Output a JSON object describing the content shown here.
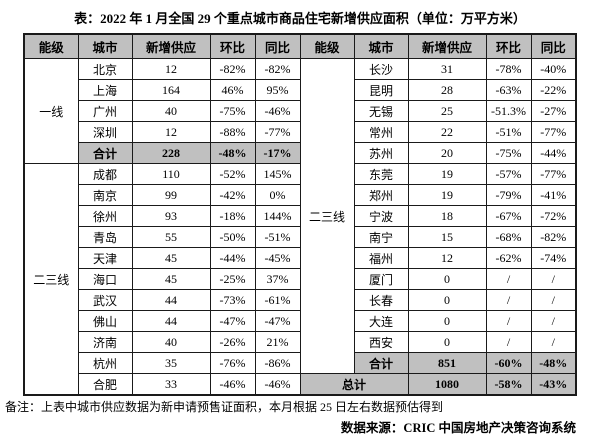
{
  "title": "表：2022 年 1 月全国 29 个重点城市商品住宅新增供应面积（单位：万平方米）",
  "table": {
    "column_headers": [
      "能级",
      "城市",
      "新增供应",
      "环比",
      "同比",
      "能级",
      "城市",
      "新增供应",
      "环比",
      "同比"
    ],
    "total_label": "合计",
    "left": {
      "tier1_label": "一线",
      "tier1_rows": [
        [
          "北京",
          "12",
          "-82%",
          "-82%"
        ],
        [
          "上海",
          "164",
          "46%",
          "95%"
        ],
        [
          "广州",
          "40",
          "-75%",
          "-46%"
        ],
        [
          "深圳",
          "12",
          "-88%",
          "-77%"
        ],
        [
          "合计",
          "228",
          "-48%",
          "-17%"
        ]
      ],
      "tier23_label": "二三线",
      "tier23_rows": [
        [
          "成都",
          "110",
          "-52%",
          "145%"
        ],
        [
          "南京",
          "99",
          "-42%",
          "0%"
        ],
        [
          "徐州",
          "93",
          "-18%",
          "144%"
        ],
        [
          "青岛",
          "55",
          "-50%",
          "-51%"
        ],
        [
          "天津",
          "45",
          "-44%",
          "-45%"
        ],
        [
          "海口",
          "45",
          "-25%",
          "37%"
        ],
        [
          "武汉",
          "44",
          "-73%",
          "-61%"
        ],
        [
          "佛山",
          "44",
          "-47%",
          "-47%"
        ],
        [
          "济南",
          "40",
          "-26%",
          "21%"
        ],
        [
          "杭州",
          "35",
          "-76%",
          "-86%"
        ],
        [
          "合肥",
          "33",
          "-46%",
          "-46%"
        ]
      ]
    },
    "right": {
      "tier_label": "二三线",
      "rows": [
        [
          "长沙",
          "31",
          "-78%",
          "-40%"
        ],
        [
          "昆明",
          "28",
          "-63%",
          "-22%"
        ],
        [
          "无锡",
          "25",
          "-51.3%",
          "-27%"
        ],
        [
          "常州",
          "22",
          "-51%",
          "-77%"
        ],
        [
          "苏州",
          "20",
          "-75%",
          "-44%"
        ],
        [
          "东莞",
          "19",
          "-57%",
          "-77%"
        ],
        [
          "郑州",
          "19",
          "-79%",
          "-41%"
        ],
        [
          "宁波",
          "18",
          "-67%",
          "-72%"
        ],
        [
          "南宁",
          "15",
          "-68%",
          "-82%"
        ],
        [
          "福州",
          "12",
          "-62%",
          "-74%"
        ],
        [
          "厦门",
          "0",
          "/",
          "/"
        ],
        [
          "长春",
          "0",
          "/",
          "/"
        ],
        [
          "大连",
          "0",
          "/",
          "/"
        ],
        [
          "西安",
          "0",
          "/",
          "/"
        ],
        [
          "合计",
          "851",
          "-60%",
          "-48%"
        ]
      ],
      "grand_total": [
        "总计",
        "1080",
        "-58%",
        "-43%"
      ]
    }
  },
  "notes": {
    "remark": "备注：上表中城市供应数据为新申请预售证面积，本月根据 25 日左右数据预估得到",
    "source": "数据来源：CRIC 中国房地产决策咨询系统"
  },
  "colors": {
    "header_bg": "#c0c0c0",
    "total_row_bg": "#c0c0c0",
    "border": "#1a1a1a",
    "text": "#000000",
    "page_bg": "#ffffff"
  },
  "chart_data": {
    "type": "table",
    "title": "表：2022 年 1 月全国 29 个重点城市商品住宅新增供应面积（单位：万平方米）",
    "columns": [
      "能级",
      "城市",
      "新增供应",
      "环比",
      "同比"
    ],
    "rows": [
      [
        "一线",
        "北京",
        "12",
        "-82%",
        "-82%"
      ],
      [
        "一线",
        "上海",
        "164",
        "46%",
        "95%"
      ],
      [
        "一线",
        "广州",
        "40",
        "-75%",
        "-46%"
      ],
      [
        "一线",
        "深圳",
        "12",
        "-88%",
        "-77%"
      ],
      [
        "一线",
        "合计",
        "228",
        "-48%",
        "-17%"
      ],
      [
        "二三线",
        "成都",
        "110",
        "-52%",
        "145%"
      ],
      [
        "二三线",
        "南京",
        "99",
        "-42%",
        "0%"
      ],
      [
        "二三线",
        "徐州",
        "93",
        "-18%",
        "144%"
      ],
      [
        "二三线",
        "青岛",
        "55",
        "-50%",
        "-51%"
      ],
      [
        "二三线",
        "天津",
        "45",
        "-44%",
        "-45%"
      ],
      [
        "二三线",
        "海口",
        "45",
        "-25%",
        "37%"
      ],
      [
        "二三线",
        "武汉",
        "44",
        "-73%",
        "-61%"
      ],
      [
        "二三线",
        "佛山",
        "44",
        "-47%",
        "-47%"
      ],
      [
        "二三线",
        "济南",
        "40",
        "-26%",
        "21%"
      ],
      [
        "二三线",
        "杭州",
        "35",
        "-76%",
        "-86%"
      ],
      [
        "二三线",
        "合肥",
        "33",
        "-46%",
        "-46%"
      ],
      [
        "二三线",
        "长沙",
        "31",
        "-78%",
        "-40%"
      ],
      [
        "二三线",
        "昆明",
        "28",
        "-63%",
        "-22%"
      ],
      [
        "二三线",
        "无锡",
        "25",
        "-51.3%",
        "-27%"
      ],
      [
        "二三线",
        "常州",
        "22",
        "-51%",
        "-77%"
      ],
      [
        "二三线",
        "苏州",
        "20",
        "-75%",
        "-44%"
      ],
      [
        "二三线",
        "东莞",
        "19",
        "-57%",
        "-77%"
      ],
      [
        "二三线",
        "郑州",
        "19",
        "-79%",
        "-41%"
      ],
      [
        "二三线",
        "宁波",
        "18",
        "-67%",
        "-72%"
      ],
      [
        "二三线",
        "南宁",
        "15",
        "-68%",
        "-82%"
      ],
      [
        "二三线",
        "福州",
        "12",
        "-62%",
        "-74%"
      ],
      [
        "二三线",
        "厦门",
        "0",
        "/",
        "/"
      ],
      [
        "二三线",
        "长春",
        "0",
        "/",
        "/"
      ],
      [
        "二三线",
        "大连",
        "0",
        "/",
        "/"
      ],
      [
        "二三线",
        "西安",
        "0",
        "/",
        "/"
      ],
      [
        "二三线",
        "合计",
        "851",
        "-60%",
        "-48%"
      ],
      [
        "总计",
        "总计",
        "1080",
        "-58%",
        "-43%"
      ]
    ],
    "notes": [
      "备注：上表中城市供应数据为新申请预售证面积，本月根据 25 日左右数据预估得到",
      "数据来源：CRIC 中国房地产决策咨询系统"
    ]
  }
}
